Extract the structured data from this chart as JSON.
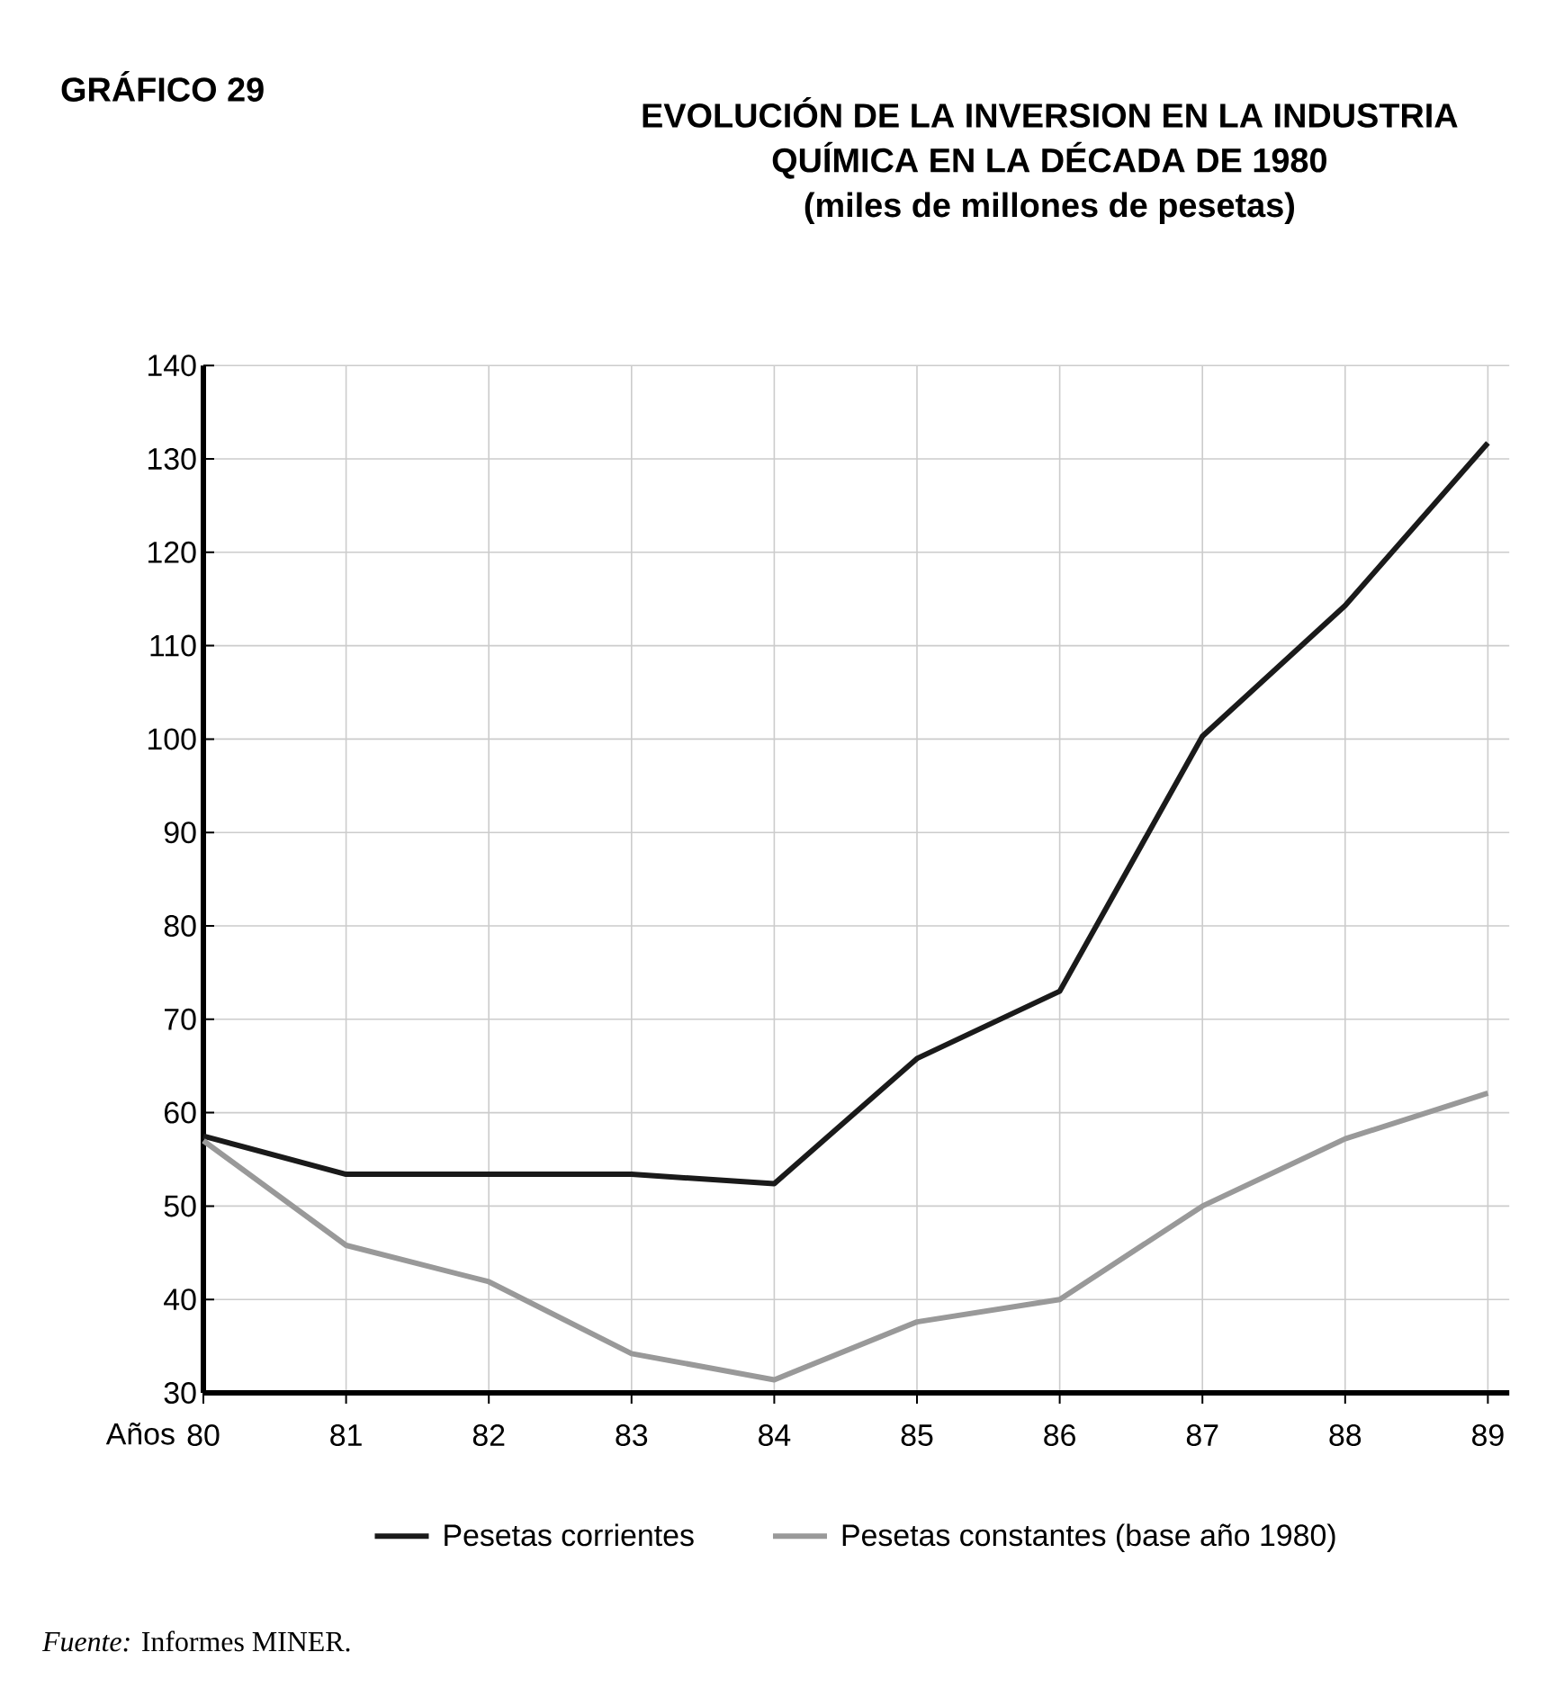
{
  "chart_data": {
    "type": "line",
    "title": "EVOLUCIÓN DE LA INVERSION EN LA INDUSTRIA QUÍMICA EN LA DÉCADA DE 1980",
    "subtitle": "(miles de millones de pesetas)",
    "xlabel": "Años",
    "annotations": [
      "GRÁFICO 29",
      "*Fuente:* Informes MINER."
    ],
    "categories": [
      "80",
      "81",
      "82",
      "83",
      "84",
      "85",
      "86",
      "87",
      "88",
      "89"
    ],
    "series": [
      {
        "name": "Pesetas corrientes",
        "color": "#1a1a1a",
        "values": [
          57.5,
          53.4,
          53.4,
          53.4,
          52.4,
          65.8,
          73,
          100.3,
          114.3,
          131.7
        ]
      },
      {
        "name": "Pesetas constantes (base año 1980)",
        "color": "#999999",
        "values": [
          57,
          45.8,
          41.9,
          34.2,
          31.4,
          37.6,
          40,
          50,
          57.2,
          62.1
        ]
      }
    ],
    "ylim": [
      30,
      140
    ],
    "yticks": [
      30,
      40,
      50,
      60,
      70,
      80,
      90,
      100,
      110,
      120,
      130,
      140
    ],
    "grid": true,
    "legend": "bottom"
  }
}
